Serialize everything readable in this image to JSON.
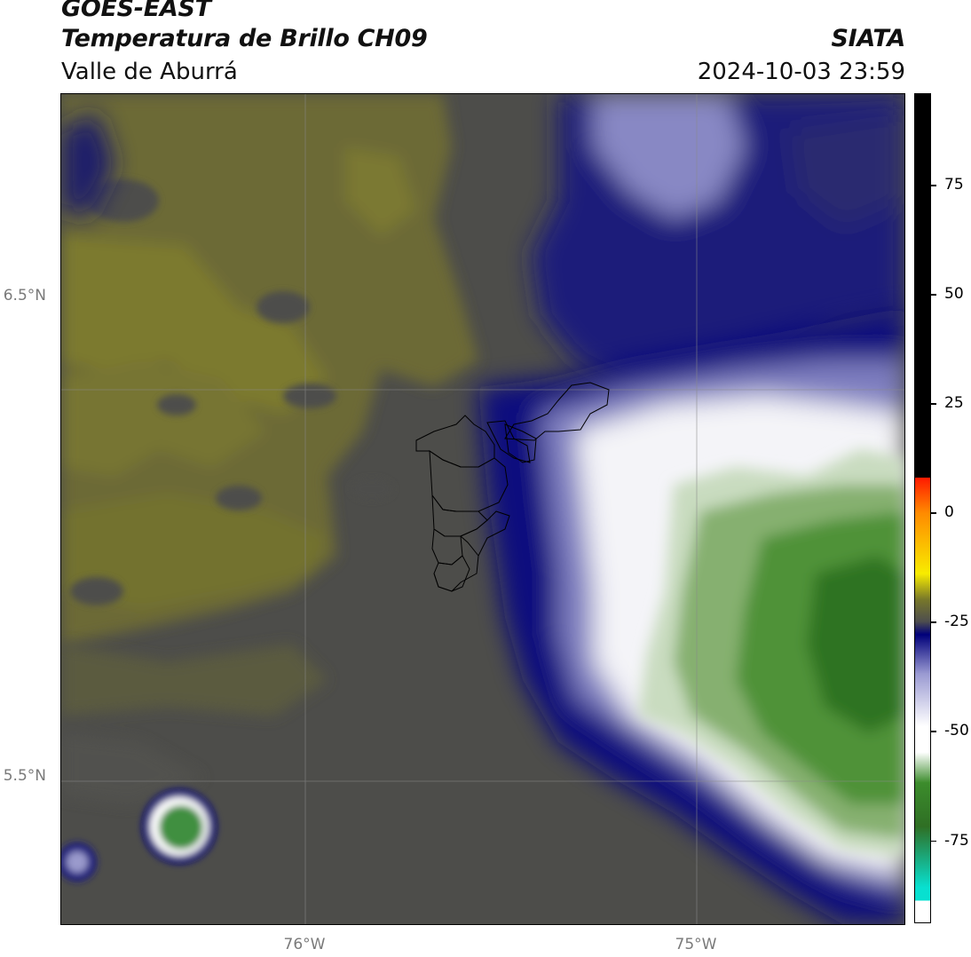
{
  "header": {
    "satellite": "GOES-EAST",
    "product": "Temperatura de Brillo CH09",
    "brand": "SIATA",
    "region": "Valle de Aburrá",
    "datetime": "2024-10-03 23:59"
  },
  "map": {
    "lat_ticks": [
      {
        "label": "6.5°N",
        "value": 6.5
      },
      {
        "label": "5.5°N",
        "value": 5.5
      }
    ],
    "lon_ticks": [
      {
        "label": "76°W",
        "value": -76.0
      },
      {
        "label": "75°W",
        "value": -75.0
      }
    ],
    "extent": {
      "lon_min": -76.62,
      "lon_max": -74.47,
      "lat_min": 5.14,
      "lat_max": 7.25
    },
    "gridlines": true,
    "boundary_color": "#000000"
  },
  "colorbar": {
    "ticks": [
      {
        "label": "75",
        "value": 75
      },
      {
        "label": "50",
        "value": 50
      },
      {
        "label": "25",
        "value": 25
      },
      {
        "label": "0",
        "value": 0
      },
      {
        "label": "-25",
        "value": -25
      },
      {
        "label": "-50",
        "value": -50
      },
      {
        "label": "-75",
        "value": -75
      }
    ],
    "range": [
      -94,
      96
    ],
    "colors": {
      "warm_black": "#000000",
      "red": "#ff1a00",
      "orange": "#ff8a00",
      "yellow": "#f8ec00",
      "olive": "#77772a",
      "gray": "#4e4e4e",
      "navy": "#00007a",
      "lavender": "#9a9ad2",
      "white": "#ffffff",
      "green": "#3c8c2c",
      "dark_green": "#2f6f24",
      "cyan": "#08e0d0"
    }
  }
}
